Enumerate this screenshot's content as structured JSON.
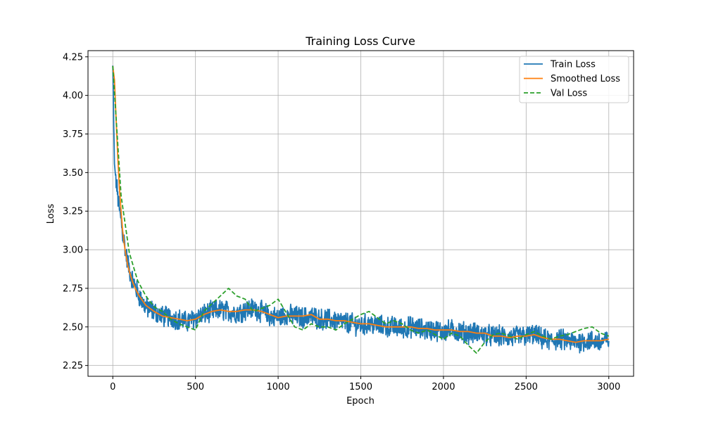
{
  "chart_data": {
    "type": "line",
    "title": "Training Loss Curve",
    "xlabel": "Epoch",
    "ylabel": "Loss",
    "xlim": [
      -150,
      3150
    ],
    "ylim": [
      2.18,
      4.29
    ],
    "xticks": [
      0,
      500,
      1000,
      1500,
      2000,
      2500,
      3000
    ],
    "xtick_labels": [
      "0",
      "500",
      "1000",
      "1500",
      "2000",
      "2500",
      "3000"
    ],
    "yticks": [
      2.25,
      2.5,
      2.75,
      3.0,
      3.25,
      3.5,
      3.75,
      4.0,
      4.25
    ],
    "ytick_labels": [
      "2.25",
      "2.50",
      "2.75",
      "3.00",
      "3.25",
      "3.50",
      "3.75",
      "4.00",
      "4.25"
    ],
    "grid": true,
    "legend_position": "top-right",
    "series": [
      {
        "name": "Train Loss",
        "color": "#1f77b4",
        "style": "solid",
        "x": [
          0,
          10,
          20,
          30,
          40,
          50,
          60,
          70,
          80,
          90,
          100,
          120,
          140,
          160,
          180,
          200,
          250,
          300,
          350,
          400,
          450,
          500,
          550,
          600,
          650,
          700,
          750,
          800,
          850,
          900,
          950,
          1000,
          1050,
          1100,
          1150,
          1200,
          1250,
          1300,
          1350,
          1400,
          1450,
          1500,
          1550,
          1600,
          1650,
          1700,
          1750,
          1800,
          1850,
          1900,
          1950,
          2000,
          2050,
          2100,
          2150,
          2200,
          2250,
          2300,
          2350,
          2400,
          2450,
          2500,
          2550,
          2600,
          2650,
          2700,
          2750,
          2800,
          2850,
          2900,
          2950,
          3000
        ],
        "y": [
          4.19,
          3.55,
          3.45,
          3.35,
          3.25,
          3.2,
          3.1,
          3.05,
          2.97,
          2.92,
          2.87,
          2.8,
          2.75,
          2.7,
          2.66,
          2.63,
          2.6,
          2.57,
          2.56,
          2.55,
          2.53,
          2.56,
          2.58,
          2.6,
          2.61,
          2.6,
          2.59,
          2.61,
          2.62,
          2.6,
          2.57,
          2.56,
          2.58,
          2.57,
          2.56,
          2.57,
          2.55,
          2.55,
          2.54,
          2.53,
          2.52,
          2.51,
          2.52,
          2.51,
          2.5,
          2.5,
          2.49,
          2.5,
          2.49,
          2.48,
          2.48,
          2.47,
          2.48,
          2.47,
          2.46,
          2.46,
          2.45,
          2.44,
          2.44,
          2.43,
          2.44,
          2.44,
          2.45,
          2.42,
          2.41,
          2.42,
          2.41,
          2.4,
          2.41,
          2.41,
          2.4,
          2.42
        ],
        "noise": 0.06
      },
      {
        "name": "Smoothed Loss",
        "color": "#ff7f0e",
        "style": "solid",
        "x": [
          0,
          10,
          20,
          30,
          40,
          50,
          60,
          70,
          80,
          90,
          100,
          120,
          140,
          160,
          180,
          200,
          250,
          300,
          350,
          400,
          450,
          500,
          550,
          600,
          650,
          700,
          750,
          800,
          850,
          900,
          950,
          1000,
          1050,
          1100,
          1150,
          1200,
          1250,
          1300,
          1350,
          1400,
          1450,
          1500,
          1550,
          1600,
          1650,
          1700,
          1750,
          1800,
          1850,
          1900,
          1950,
          2000,
          2050,
          2100,
          2150,
          2200,
          2250,
          2300,
          2350,
          2400,
          2450,
          2500,
          2550,
          2600,
          2650,
          2700,
          2750,
          2800,
          2850,
          2900,
          2950,
          3000
        ],
        "y": [
          4.19,
          4.1,
          3.85,
          3.6,
          3.4,
          3.25,
          3.12,
          3.03,
          2.96,
          2.9,
          2.86,
          2.79,
          2.74,
          2.7,
          2.67,
          2.64,
          2.6,
          2.57,
          2.56,
          2.55,
          2.54,
          2.55,
          2.58,
          2.6,
          2.61,
          2.6,
          2.6,
          2.61,
          2.61,
          2.6,
          2.58,
          2.56,
          2.57,
          2.57,
          2.57,
          2.58,
          2.55,
          2.55,
          2.54,
          2.54,
          2.53,
          2.52,
          2.52,
          2.51,
          2.5,
          2.5,
          2.5,
          2.5,
          2.49,
          2.49,
          2.48,
          2.48,
          2.48,
          2.47,
          2.47,
          2.46,
          2.46,
          2.44,
          2.44,
          2.43,
          2.44,
          2.44,
          2.45,
          2.43,
          2.42,
          2.42,
          2.41,
          2.4,
          2.41,
          2.41,
          2.41,
          2.42
        ]
      },
      {
        "name": "Val Loss",
        "color": "#2ca02c",
        "style": "dashed",
        "x": [
          0,
          50,
          100,
          150,
          200,
          250,
          300,
          350,
          400,
          450,
          500,
          550,
          600,
          650,
          700,
          750,
          800,
          850,
          900,
          950,
          1000,
          1050,
          1100,
          1150,
          1200,
          1250,
          1300,
          1350,
          1400,
          1450,
          1500,
          1550,
          1600,
          1650,
          1700,
          1750,
          1800,
          1850,
          1900,
          1950,
          2000,
          2050,
          2100,
          2150,
          2200,
          2250,
          2300,
          2350,
          2400,
          2450,
          2500,
          2550,
          2600,
          2650,
          2700,
          2750,
          2800,
          2850,
          2900,
          2950,
          3000
        ],
        "y": [
          4.19,
          3.35,
          2.98,
          2.8,
          2.7,
          2.63,
          2.6,
          2.55,
          2.52,
          2.5,
          2.48,
          2.6,
          2.65,
          2.7,
          2.75,
          2.7,
          2.68,
          2.6,
          2.62,
          2.64,
          2.68,
          2.59,
          2.5,
          2.48,
          2.52,
          2.5,
          2.5,
          2.48,
          2.52,
          2.55,
          2.58,
          2.6,
          2.56,
          2.52,
          2.54,
          2.52,
          2.48,
          2.46,
          2.48,
          2.45,
          2.42,
          2.46,
          2.44,
          2.38,
          2.33,
          2.4,
          2.45,
          2.46,
          2.44,
          2.42,
          2.45,
          2.47,
          2.44,
          2.42,
          2.44,
          2.45,
          2.47,
          2.49,
          2.5,
          2.46,
          2.44
        ]
      }
    ]
  }
}
